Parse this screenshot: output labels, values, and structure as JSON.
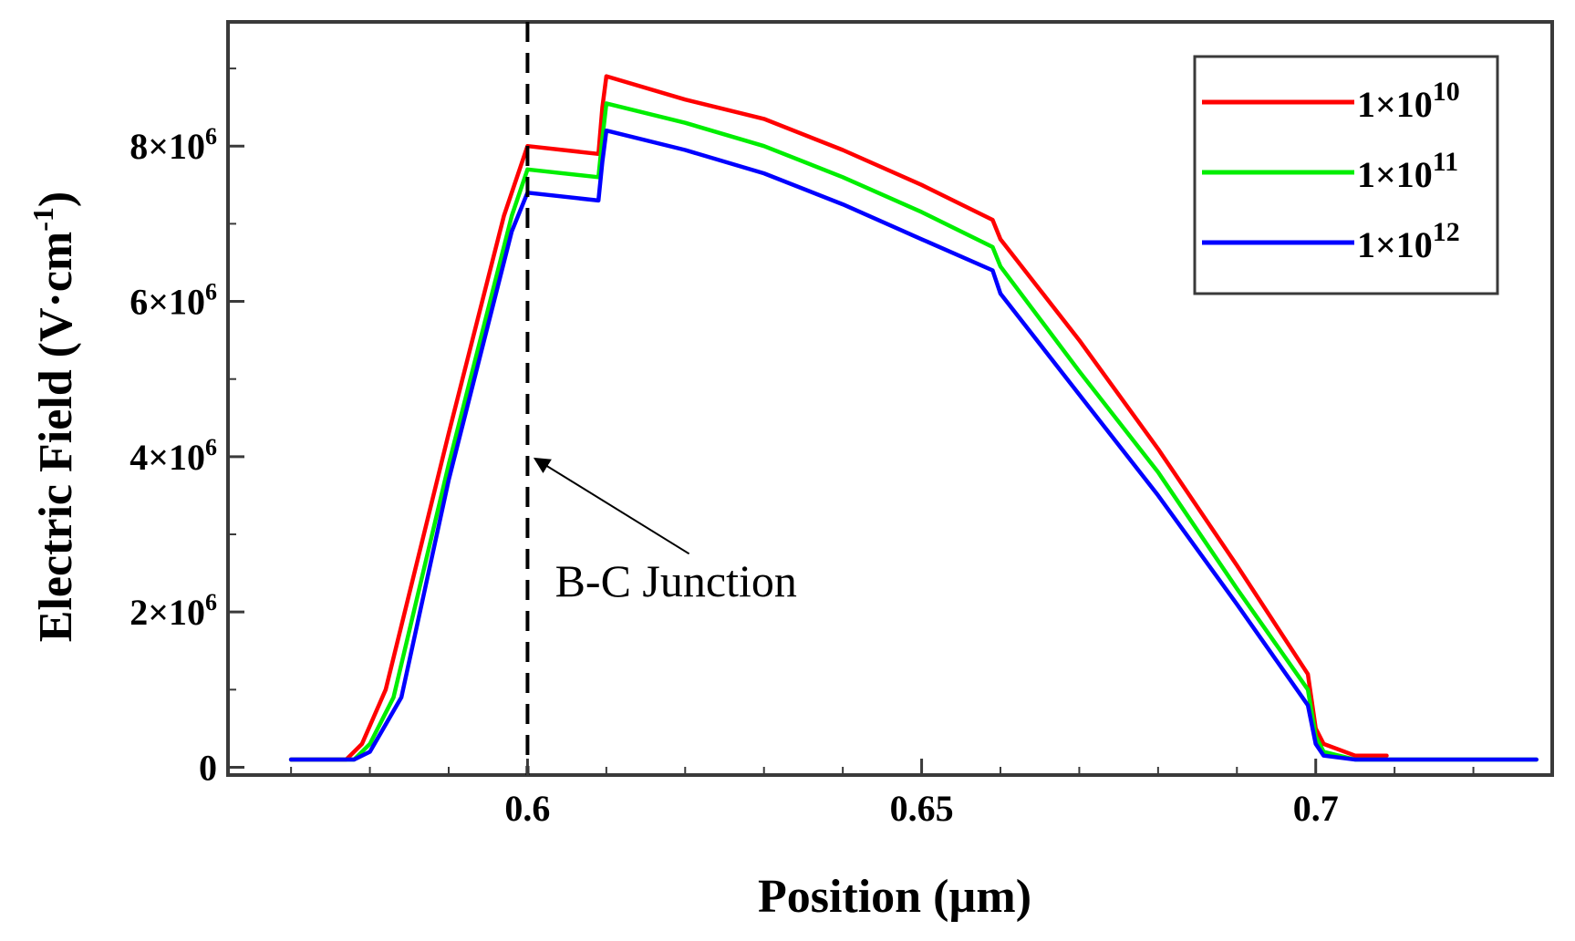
{
  "chart_data": {
    "type": "line",
    "title": "",
    "xlabel": "Position (µm)",
    "ylabel_main": "Electric Field (V·cm",
    "ylabel_sup": "-1",
    "ylabel_end": ")",
    "xlim": [
      0.562,
      0.73
    ],
    "ylim": [
      -100000,
      9600000
    ],
    "x_ticks": [
      {
        "value": 0.6,
        "label": "0.6"
      },
      {
        "value": 0.65,
        "label": "0.65"
      },
      {
        "value": 0.7,
        "label": "0.7"
      }
    ],
    "x_minor_step": 0.01,
    "y_ticks": [
      {
        "value": 0,
        "mant": "0",
        "exp": ""
      },
      {
        "value": 2000000,
        "mant": "2×10",
        "exp": "6"
      },
      {
        "value": 4000000,
        "mant": "4×10",
        "exp": "6"
      },
      {
        "value": 6000000,
        "mant": "6×10",
        "exp": "6"
      },
      {
        "value": 8000000,
        "mant": "8×10",
        "exp": "6"
      }
    ],
    "y_minor_step": 1000000,
    "grid": false,
    "legend_position": "top-right",
    "series": [
      {
        "name": "1×10",
        "exp": "10",
        "color": "#ff0000",
        "x": [
          0.57,
          0.577,
          0.579,
          0.582,
          0.59,
          0.597,
          0.6,
          0.609,
          0.6095,
          0.61,
          0.62,
          0.63,
          0.64,
          0.65,
          0.659,
          0.66,
          0.67,
          0.68,
          0.69,
          0.699,
          0.7,
          0.701,
          0.705,
          0.709
        ],
        "values": [
          100000,
          100000,
          300000,
          1000000,
          4300000,
          7100000,
          8000000,
          7900000,
          8500000,
          8900000,
          8600000,
          8350000,
          7950000,
          7500000,
          7050000,
          6800000,
          5500000,
          4100000,
          2600000,
          1200000,
          500000,
          300000,
          150000,
          150000
        ]
      },
      {
        "name": "1×10",
        "exp": "11",
        "color": "#00ee00",
        "x": [
          0.57,
          0.578,
          0.58,
          0.583,
          0.59,
          0.598,
          0.6,
          0.609,
          0.6095,
          0.61,
          0.62,
          0.63,
          0.64,
          0.65,
          0.659,
          0.66,
          0.67,
          0.68,
          0.69,
          0.699,
          0.7,
          0.701,
          0.705,
          0.728
        ],
        "values": [
          100000,
          100000,
          300000,
          900000,
          3900000,
          7100000,
          7700000,
          7600000,
          8100000,
          8550000,
          8300000,
          8000000,
          7600000,
          7150000,
          6700000,
          6450000,
          5100000,
          3800000,
          2300000,
          1000000,
          400000,
          200000,
          100000,
          100000
        ]
      },
      {
        "name": "1×10",
        "exp": "12",
        "color": "#0000ff",
        "x": [
          0.57,
          0.578,
          0.58,
          0.584,
          0.59,
          0.598,
          0.6,
          0.609,
          0.6095,
          0.61,
          0.62,
          0.63,
          0.64,
          0.65,
          0.659,
          0.66,
          0.67,
          0.68,
          0.69,
          0.699,
          0.7,
          0.701,
          0.705,
          0.728
        ],
        "values": [
          100000,
          100000,
          200000,
          900000,
          3700000,
          6900000,
          7400000,
          7300000,
          7800000,
          8200000,
          7950000,
          7650000,
          7250000,
          6800000,
          6400000,
          6100000,
          4800000,
          3500000,
          2100000,
          800000,
          300000,
          150000,
          100000,
          100000
        ]
      }
    ],
    "reference_line": {
      "x": 0.6,
      "style": "dashed"
    },
    "annotation": {
      "text": "B-C Junction",
      "arrow_to_x": 0.6,
      "arrow_to_y": 4000000,
      "text_x": 0.622,
      "text_y": 2400000
    }
  }
}
